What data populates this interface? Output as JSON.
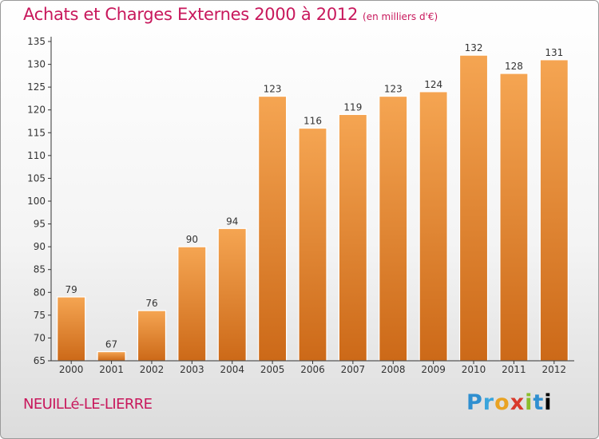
{
  "header": {
    "title": "Achats et Charges Externes 2000 à 2012",
    "subtitle": "(en milliers d'€)"
  },
  "footer": {
    "town": "NEUILLé-LE-LIERRE",
    "logo_letters": [
      "P",
      "r",
      "o",
      "x",
      "i",
      "t",
      "i"
    ]
  },
  "colors": {
    "bar_light": "#f5a552",
    "bar_dark": "#cc6918",
    "title": "#c8185c",
    "axis": "#333333"
  },
  "chart_data": {
    "type": "bar",
    "title": "Achats et Charges Externes 2000 à 2012",
    "subtitle": "(en milliers d'€)",
    "xlabel": "",
    "ylabel": "",
    "categories": [
      "2000",
      "2001",
      "2002",
      "2003",
      "2004",
      "2005",
      "2006",
      "2007",
      "2008",
      "2009",
      "2010",
      "2011",
      "2012"
    ],
    "values": [
      79,
      67,
      76,
      90,
      94,
      123,
      116,
      119,
      123,
      124,
      132,
      128,
      131
    ],
    "ylim": [
      65,
      135
    ],
    "yticks": [
      65,
      70,
      75,
      80,
      85,
      90,
      95,
      100,
      105,
      110,
      115,
      120,
      125,
      130,
      135
    ],
    "grid": false,
    "legend": "none"
  }
}
